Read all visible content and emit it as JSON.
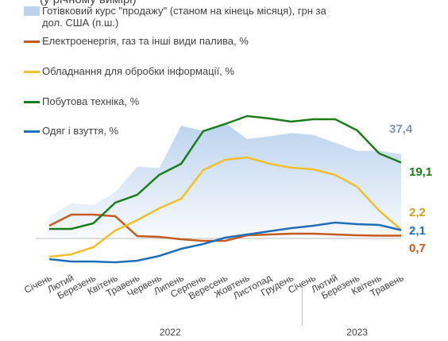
{
  "chart_data": {
    "type": "line",
    "subtitle": "(у річному вимірі)",
    "categories": [
      "Січень",
      "Лютий",
      "Березень",
      "Квітень",
      "Травень",
      "Червень",
      "Липень",
      "Серпень",
      "Вересень",
      "Жовтень",
      "Листопад",
      "Грудень",
      "Січень",
      "Лютий",
      "Березень",
      "Квітень",
      "Травень"
    ],
    "years": [
      "2022",
      "2023"
    ],
    "ylim": [
      -8,
      34
    ],
    "y2lim": [
      19.8,
      45.1
    ],
    "series": [
      {
        "name": "Готівковий курс \"продажу\" (станом на кінець місяця), грн за дол. США (п.ш.)",
        "type": "area",
        "axis": "y2",
        "color": "#bcd3ee",
        "values": [
          28.0,
          29.9,
          29.7,
          31.6,
          35.5,
          35.3,
          41.7,
          40.9,
          42.1,
          39.7,
          40.1,
          40.6,
          40.3,
          39.1,
          37.9,
          37.9,
          37.4
        ],
        "value_labels": [
          null,
          null,
          null,
          null,
          null,
          null,
          null,
          null,
          null,
          null,
          null,
          null,
          null,
          null,
          null,
          null,
          "37,4"
        ],
        "label_color": "#8497b0"
      },
      {
        "name": "Електроенергія, газ та інші види палива, %",
        "color": "#c55a1e",
        "values": [
          3.2,
          6,
          6,
          5.6,
          0.6,
          0.4,
          -0.2,
          -0.6,
          -0.6,
          0.8,
          1,
          1.2,
          1.2,
          1,
          0.8,
          0.7,
          0.7
        ],
        "value_labels": [
          null,
          null,
          null,
          null,
          null,
          null,
          null,
          null,
          null,
          null,
          null,
          null,
          null,
          null,
          null,
          null,
          "0,7"
        ],
        "label_color": "#c55a1e"
      },
      {
        "name": "Обладнання для обробки інформації, %",
        "color": "#f2bf2a",
        "values": [
          -4.6,
          -4,
          -2.2,
          2,
          4.6,
          7.6,
          10,
          17.2,
          19.8,
          20.4,
          18.8,
          17.8,
          17.4,
          16,
          13,
          7,
          2.2
        ],
        "value_labels": [
          null,
          null,
          null,
          null,
          null,
          null,
          null,
          null,
          null,
          null,
          null,
          null,
          null,
          null,
          null,
          null,
          "2,2"
        ],
        "label_color": "#c9a020"
      },
      {
        "name": "Побутова техніка, %",
        "color": "#1a7d1a",
        "values": [
          2.4,
          2.4,
          3.8,
          9,
          11,
          16,
          18.8,
          27,
          28.8,
          30.8,
          30.2,
          29.4,
          30,
          30,
          27.2,
          21.4,
          19.1
        ],
        "value_labels": [
          null,
          null,
          null,
          null,
          null,
          null,
          null,
          null,
          null,
          null,
          null,
          null,
          null,
          null,
          null,
          null,
          "19,1"
        ],
        "label_color": "#1a7d1a"
      },
      {
        "name": "Одяг і взуття, %",
        "color": "#1f6fb8",
        "values": [
          -5.2,
          -5.8,
          -5.8,
          -6,
          -5.6,
          -4.4,
          -2.6,
          -1.4,
          0.2,
          1,
          1.8,
          2.6,
          3.2,
          4,
          3.6,
          3.4,
          2.1
        ],
        "value_labels": [
          null,
          null,
          null,
          null,
          null,
          null,
          null,
          null,
          null,
          null,
          null,
          null,
          null,
          null,
          null,
          null,
          "2,1"
        ],
        "label_color": "#1f6fb8"
      }
    ]
  }
}
